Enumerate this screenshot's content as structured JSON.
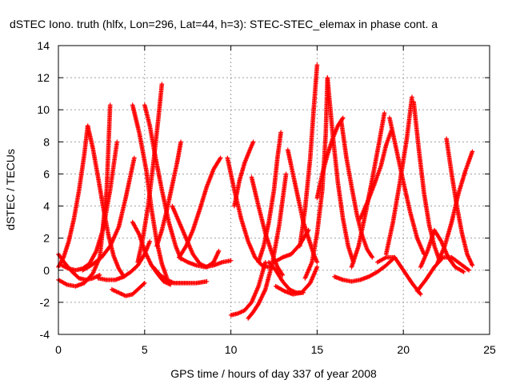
{
  "chart_data": {
    "type": "scatter",
    "title": "dSTEC Iono. truth (hlfx, Lon=296, Lat=44, h=3): STEC-STEC_elemax in phase cont. a",
    "xlabel": "GPS time / hours of day 337 of year 2008",
    "ylabel": "dSTEC  / TECUs",
    "xlim": [
      0,
      25
    ],
    "ylim": [
      -4,
      14
    ],
    "x_ticks": [
      "0",
      "5",
      "10",
      "15",
      "20",
      "25"
    ],
    "y_ticks": [
      "-4",
      "-2",
      "0",
      "2",
      "4",
      "6",
      "8",
      "10",
      "12",
      "14"
    ],
    "grid": true,
    "marker": "+",
    "color": "#ff0000",
    "series": [
      {
        "x": [
          0.0,
          0.3,
          0.6,
          0.9,
          1.2,
          1.5,
          1.7
        ],
        "y": [
          0.2,
          0.8,
          1.8,
          3.2,
          5.0,
          7.2,
          9.0
        ]
      },
      {
        "x": [
          1.7,
          2.0,
          2.3,
          2.6,
          2.9,
          3.2,
          3.5,
          3.8
        ],
        "y": [
          9.0,
          7.6,
          5.8,
          3.9,
          2.2,
          0.9,
          0.1,
          -0.4
        ]
      },
      {
        "x": [
          0.0,
          0.4,
          0.8,
          1.2,
          1.6,
          2.0,
          2.4
        ],
        "y": [
          1.0,
          0.4,
          -0.1,
          -0.5,
          -0.6,
          -0.5,
          -0.3
        ]
      },
      {
        "x": [
          0.0,
          0.5,
          1.0,
          1.5,
          2.0,
          2.4,
          2.8,
          3.0
        ],
        "y": [
          -0.6,
          -0.9,
          -1.0,
          -0.8,
          -0.2,
          0.8,
          5.0,
          10.3
        ]
      },
      {
        "x": [
          0.2,
          0.6,
          1.0,
          1.4,
          1.8,
          2.2,
          2.6,
          3.0,
          3.4
        ],
        "y": [
          0.3,
          0.1,
          0.0,
          0.1,
          0.4,
          1.2,
          2.6,
          5.0,
          8.0
        ]
      },
      {
        "x": [
          2.3,
          2.8,
          3.3,
          3.8,
          4.2,
          4.6,
          5.0,
          5.3
        ],
        "y": [
          -0.5,
          -0.6,
          -0.6,
          -0.4,
          -0.1,
          0.3,
          1.0,
          1.8
        ]
      },
      {
        "x": [
          1.4,
          1.9,
          2.5,
          3.0,
          3.5,
          3.9,
          4.2,
          4.4
        ],
        "y": [
          0.0,
          0.3,
          0.8,
          1.5,
          2.7,
          4.5,
          6.0,
          7.0
        ]
      },
      {
        "x": [
          3.1,
          3.5,
          3.9,
          4.3,
          4.6,
          5.0
        ],
        "y": [
          -1.2,
          -1.4,
          -1.6,
          -1.5,
          -1.2,
          -0.8
        ]
      },
      {
        "x": [
          4.3,
          4.7,
          5.1,
          5.4,
          5.7,
          6.0,
          6.3
        ],
        "y": [
          10.3,
          8.5,
          6.2,
          3.8,
          1.8,
          0.4,
          -0.5
        ]
      },
      {
        "x": [
          4.3,
          4.7,
          5.0,
          5.4,
          5.8,
          6.1,
          6.5
        ],
        "y": [
          3.0,
          2.2,
          1.2,
          0.3,
          -0.3,
          -0.7,
          -0.9
        ]
      },
      {
        "x": [
          5.0,
          5.3,
          5.6,
          6.0,
          6.4,
          6.8,
          7.1
        ],
        "y": [
          10.3,
          9.0,
          7.2,
          5.0,
          3.0,
          1.5,
          0.7
        ]
      },
      {
        "x": [
          4.6,
          4.9,
          5.2,
          5.5,
          5.8,
          6.0
        ],
        "y": [
          0.5,
          2.0,
          4.0,
          6.6,
          9.5,
          11.6
        ]
      },
      {
        "x": [
          5.5,
          5.9,
          6.3,
          6.7,
          7.1,
          7.5,
          8.0,
          8.6
        ],
        "y": [
          0.2,
          -0.3,
          -0.6,
          -0.8,
          -0.8,
          -0.8,
          -0.8,
          -0.7
        ]
      },
      {
        "x": [
          5.7,
          6.0,
          6.3,
          6.6,
          6.9,
          7.1
        ],
        "y": [
          1.5,
          2.5,
          3.8,
          5.3,
          6.8,
          8.0
        ]
      },
      {
        "x": [
          6.6,
          7.0,
          7.4,
          7.8,
          8.2,
          8.6,
          9.0,
          9.3
        ],
        "y": [
          4.0,
          3.0,
          2.0,
          1.0,
          0.4,
          0.2,
          0.5,
          1.2
        ]
      },
      {
        "x": [
          7.0,
          7.4,
          7.8,
          8.2,
          8.6,
          9.0,
          9.4
        ],
        "y": [
          0.8,
          1.5,
          2.5,
          3.8,
          5.2,
          6.3,
          7.0
        ]
      },
      {
        "x": [
          7.0,
          7.5,
          8.0,
          8.5,
          9.0,
          9.5,
          10.0
        ],
        "y": [
          0.8,
          0.5,
          0.3,
          0.2,
          0.3,
          0.5,
          0.6
        ]
      },
      {
        "x": [
          9.8,
          10.2,
          10.6,
          11.0,
          11.4,
          11.8,
          12.2
        ],
        "y": [
          7.0,
          5.0,
          3.2,
          1.8,
          0.8,
          0.3,
          0.2
        ]
      },
      {
        "x": [
          10.0,
          10.4,
          10.8,
          11.2,
          11.6,
          12.0
        ],
        "y": [
          -2.8,
          -2.7,
          -2.5,
          -2.0,
          -1.0,
          0.5
        ]
      },
      {
        "x": [
          11.0,
          11.3,
          11.6,
          12.0,
          12.4,
          12.8,
          13.2
        ],
        "y": [
          -3.0,
          -2.6,
          -2.1,
          -1.2,
          0.4,
          2.8,
          6.0
        ]
      },
      {
        "x": [
          10.2,
          10.5,
          10.8,
          11.1,
          11.3
        ],
        "y": [
          4.0,
          5.6,
          6.7,
          7.5,
          8.0
        ]
      },
      {
        "x": [
          11.2,
          11.6,
          12.0,
          12.4,
          12.7,
          13.0
        ],
        "y": [
          5.8,
          4.0,
          2.3,
          1.0,
          0.2,
          -0.3
        ]
      },
      {
        "x": [
          11.6,
          11.9,
          12.2,
          12.5,
          12.7,
          12.9
        ],
        "y": [
          0.5,
          1.5,
          3.0,
          5.0,
          7.0,
          8.6
        ]
      },
      {
        "x": [
          12.2,
          12.6,
          13.0,
          13.4,
          13.8,
          14.2
        ],
        "y": [
          0.5,
          0.0,
          -0.7,
          -1.2,
          -1.4,
          -1.4
        ]
      },
      {
        "x": [
          12.6,
          13.1,
          13.6,
          14.1,
          14.6,
          15.0
        ],
        "y": [
          -1.0,
          -1.3,
          -1.5,
          -1.4,
          -0.8,
          0.2
        ]
      },
      {
        "x": [
          13.3,
          13.6,
          13.9,
          14.2,
          14.5,
          14.8,
          15.0
        ],
        "y": [
          7.5,
          6.0,
          4.5,
          3.0,
          2.0,
          1.0,
          0.5
        ]
      },
      {
        "x": [
          14.0,
          14.3,
          14.6,
          14.8,
          15.0
        ],
        "y": [
          1.5,
          3.8,
          7.0,
          10.0,
          12.8
        ]
      },
      {
        "x": [
          14.3,
          14.7,
          15.0,
          15.3,
          15.5,
          15.6
        ],
        "y": [
          -0.5,
          0.5,
          2.3,
          5.0,
          8.5,
          12.0
        ]
      },
      {
        "x": [
          15.6,
          15.9,
          16.2,
          16.5,
          16.8,
          17.1
        ],
        "y": [
          12.0,
          8.5,
          5.5,
          3.2,
          1.5,
          0.5
        ]
      },
      {
        "x": [
          15.0,
          15.3,
          15.6,
          15.9,
          16.2,
          16.5
        ],
        "y": [
          4.5,
          6.0,
          7.2,
          8.2,
          9.0,
          9.5
        ]
      },
      {
        "x": [
          16.4,
          16.7,
          17.0,
          17.3,
          17.6,
          17.9,
          18.2
        ],
        "y": [
          9.3,
          7.0,
          5.2,
          3.5,
          2.2,
          1.3,
          0.8
        ]
      },
      {
        "x": [
          16.0,
          16.5,
          17.0,
          17.5,
          18.0,
          18.5,
          19.0,
          19.5
        ],
        "y": [
          -0.4,
          -0.6,
          -0.7,
          -0.6,
          -0.4,
          -0.1,
          0.3,
          0.8
        ]
      },
      {
        "x": [
          17.0,
          17.4,
          17.8,
          18.2,
          18.6,
          18.9
        ],
        "y": [
          0.2,
          1.5,
          3.5,
          5.7,
          8.0,
          9.8
        ]
      },
      {
        "x": [
          17.5,
          17.9,
          18.3,
          18.7,
          19.0,
          19.3
        ],
        "y": [
          3.2,
          4.2,
          5.3,
          6.5,
          7.8,
          8.7
        ]
      },
      {
        "x": [
          19.2,
          19.6,
          20.0,
          20.4,
          20.8,
          21.2
        ],
        "y": [
          9.5,
          7.5,
          5.5,
          3.6,
          2.0,
          1.0
        ]
      },
      {
        "x": [
          18.5,
          19.0,
          19.5,
          20.0,
          20.5,
          21.0
        ],
        "y": [
          0.5,
          0.8,
          0.8,
          0.0,
          -0.8,
          -1.5
        ]
      },
      {
        "x": [
          19.0,
          19.4,
          19.8,
          20.2,
          20.5
        ],
        "y": [
          1.0,
          3.0,
          5.5,
          8.2,
          10.8
        ]
      },
      {
        "x": [
          20.6,
          20.9,
          21.2,
          21.5,
          21.8,
          22.1
        ],
        "y": [
          10.5,
          7.5,
          4.8,
          2.8,
          1.5,
          0.6
        ]
      },
      {
        "x": [
          20.8,
          21.3,
          21.8,
          22.3,
          22.8,
          23.3,
          23.8
        ],
        "y": [
          -1.3,
          -0.6,
          0.2,
          0.8,
          0.8,
          0.4,
          0.0
        ]
      },
      {
        "x": [
          21.0,
          21.4,
          21.8,
          22.2,
          22.6,
          23.0,
          23.5
        ],
        "y": [
          0.2,
          1.2,
          2.5,
          1.8,
          0.8,
          0.2,
          -0.1
        ]
      },
      {
        "x": [
          22.5,
          22.8,
          23.1,
          23.4,
          23.7,
          24.0
        ],
        "y": [
          8.2,
          6.0,
          4.0,
          2.3,
          1.0,
          0.3
        ]
      },
      {
        "x": [
          22.0,
          22.4,
          22.8,
          23.2,
          23.6,
          24.0
        ],
        "y": [
          0.5,
          1.5,
          3.0,
          4.8,
          6.2,
          7.4
        ]
      },
      {
        "x": [
          12.5,
          13.0,
          13.5,
          14.0,
          14.5
        ],
        "y": [
          0.5,
          0.8,
          1.0,
          1.6,
          2.5
        ]
      }
    ]
  }
}
